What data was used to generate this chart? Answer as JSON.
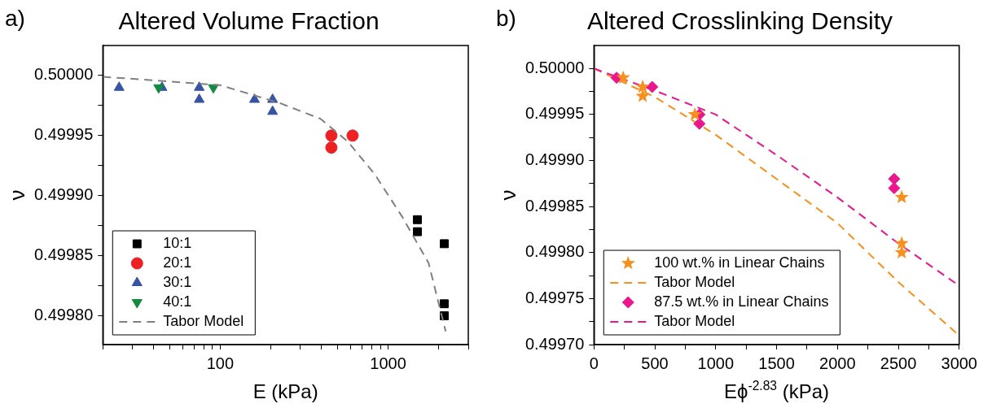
{
  "chart_data": [
    {
      "type": "scatter",
      "title": "Altered Volume Fraction",
      "xlabel": "E (kPa)",
      "ylabel": "ν",
      "annotations": [
        "a)"
      ],
      "log": "x",
      "grid": false,
      "legend": "bottom left",
      "xlim": [
        20,
        3000
      ],
      "ylim": [
        0.499776,
        0.500025
      ],
      "xticks": [
        {
          "value": 20,
          "label": null
        },
        {
          "value": 30,
          "label": null
        },
        {
          "value": 40,
          "label": null
        },
        {
          "value": 50,
          "label": null
        },
        {
          "value": 60,
          "label": null
        },
        {
          "value": 70,
          "label": null
        },
        {
          "value": 80,
          "label": null
        },
        {
          "value": 90,
          "label": null
        },
        100,
        {
          "value": 200,
          "label": null
        },
        {
          "value": 300,
          "label": null
        },
        {
          "value": 400,
          "label": null
        },
        {
          "value": 500,
          "label": null
        },
        {
          "value": 600,
          "label": null
        },
        {
          "value": 700,
          "label": null
        },
        {
          "value": 800,
          "label": null
        },
        {
          "value": 900,
          "label": null
        },
        1000,
        {
          "value": 2000,
          "label": null
        },
        {
          "value": 3000,
          "label": null
        }
      ],
      "yticks": [
        {
          "value": 0.4998,
          "label": "0.49980"
        },
        {
          "value": 0.499825,
          "label": null
        },
        {
          "value": 0.49985,
          "label": "0.49985"
        },
        {
          "value": 0.499875,
          "label": null
        },
        {
          "value": 0.4999,
          "label": "0.49990"
        },
        {
          "value": 0.499925,
          "label": null
        },
        {
          "value": 0.49995,
          "label": "0.49995"
        },
        {
          "value": 0.499975,
          "label": null
        },
        {
          "value": 0.5,
          "label": "0.50000"
        }
      ],
      "series": [
        {
          "name": "10:1",
          "color": "#000000",
          "marker": "square",
          "x": [
            1493,
            1493,
            2158,
            2158,
            2158
          ],
          "values": [
            0.49988,
            0.49987,
            0.49986,
            0.49981,
            0.4998
          ]
        },
        {
          "name": "20:1",
          "color": "#ed2024",
          "marker": "circle",
          "x": [
            459,
            459,
            614
          ],
          "values": [
            0.49995,
            0.49994,
            0.49995
          ]
        },
        {
          "name": "30:1",
          "color": "#3953a4",
          "marker": "triangle",
          "x": [
            25,
            45,
            75,
            75,
            160,
            205,
            205
          ],
          "values": [
            0.49999,
            0.49999,
            0.49999,
            0.49998,
            0.49998,
            0.49998,
            0.49997
          ]
        },
        {
          "name": "40:1",
          "color": "#138a3f",
          "marker": "triangle-down",
          "x": [
            43,
            91
          ],
          "values": [
            0.49999,
            0.49999
          ]
        },
        {
          "name": "Tabor Model",
          "type": "line",
          "line_style": "dashed",
          "marker": "none",
          "color": "#808080",
          "x": [
            20,
            100,
            227,
            396,
            575,
            830,
            1205,
            1740,
            2200
          ],
          "values": [
            0.499999,
            0.499992,
            0.499977,
            0.499964,
            0.499945,
            0.499918,
            0.499883,
            0.499844,
            0.499787
          ]
        }
      ]
    },
    {
      "type": "scatter",
      "title": "Altered Crosslinking Density",
      "xlabel": "Eϕ$^{-2.83}$ (kPa)",
      "ylabel": "ν",
      "annotations": [
        "b)"
      ],
      "grid": false,
      "legend": "bottom left",
      "xlim": [
        0,
        3000
      ],
      "ylim": [
        0.4997,
        0.500025
      ],
      "xticks": [
        0,
        {
          "value": 250,
          "label": null
        },
        500,
        {
          "value": 750,
          "label": null
        },
        1000,
        {
          "value": 1250,
          "label": null
        },
        1500,
        {
          "value": 1750,
          "label": null
        },
        2000,
        {
          "value": 2250,
          "label": null
        },
        2500,
        {
          "value": 2750,
          "label": null
        },
        3000
      ],
      "yticks": [
        {
          "value": 0.4997,
          "label": "0.49970"
        },
        {
          "value": 0.499725,
          "label": null
        },
        {
          "value": 0.49975,
          "label": "0.49975"
        },
        {
          "value": 0.499775,
          "label": null
        },
        {
          "value": 0.4998,
          "label": "0.49980"
        },
        {
          "value": 0.499825,
          "label": null
        },
        {
          "value": 0.49985,
          "label": "0.49985"
        },
        {
          "value": 0.499875,
          "label": null
        },
        {
          "value": 0.4999,
          "label": "0.49990"
        },
        {
          "value": 0.499925,
          "label": null
        },
        {
          "value": 0.49995,
          "label": "0.49995"
        },
        {
          "value": 0.499975,
          "label": null
        },
        {
          "value": 0.5,
          "label": "0.50000"
        }
      ],
      "series": [
        {
          "name": "100 wt.% in Linear Chains",
          "color": "#f7901e",
          "marker": "star",
          "x": [
            240,
            400,
            400,
            829,
            2528,
            2528,
            2528
          ],
          "values": [
            0.49999,
            0.49998,
            0.49997,
            0.49995,
            0.49986,
            0.49981,
            0.4998
          ]
        },
        {
          "name": "Tabor Model",
          "type": "line",
          "line_style": "dashed",
          "marker": "none",
          "color": "#f7901e",
          "x": [
            0,
            500,
            1000,
            1500,
            2000,
            2500,
            3000
          ],
          "values": [
            0.5,
            0.499969,
            0.499928,
            0.49988,
            0.499832,
            0.499768,
            0.49971
          ]
        },
        {
          "name": "87.5 wt.% in Linear Chains",
          "color": "#ec168c",
          "marker": "diamond",
          "x": [
            186,
            478,
            866,
            866,
            2466,
            2466
          ],
          "values": [
            0.49999,
            0.49998,
            0.49995,
            0.49994,
            0.49988,
            0.49987
          ]
        },
        {
          "name": "Tabor Model",
          "type": "line",
          "line_style": "dashed",
          "marker": "none",
          "color": "#ec168c",
          "x": [
            0,
            500,
            1000,
            1500,
            2000,
            2500,
            3000
          ],
          "values": [
            0.5,
            0.499976,
            0.49995,
            0.499906,
            0.49986,
            0.49981,
            0.499764
          ]
        }
      ]
    }
  ]
}
